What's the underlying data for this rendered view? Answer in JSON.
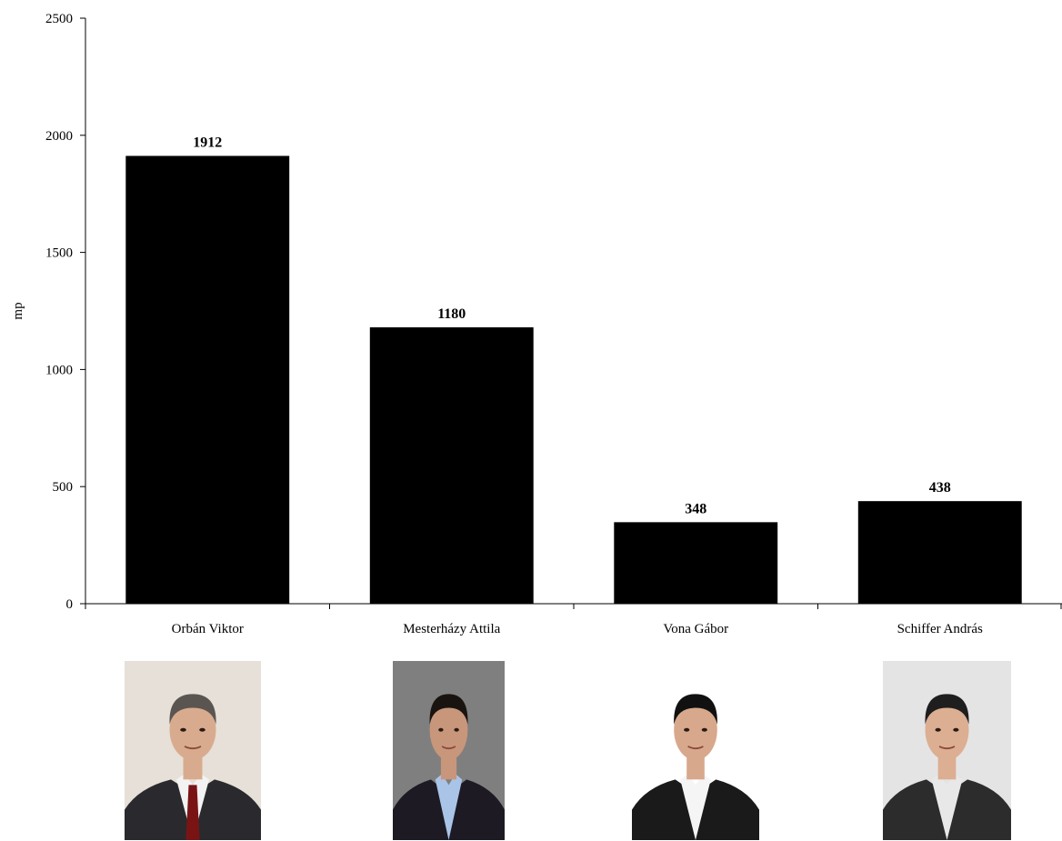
{
  "chart_data": {
    "type": "bar",
    "title": "",
    "xlabel": "",
    "ylabel": "mp",
    "ylim": [
      0,
      2500
    ],
    "yticks": [
      0,
      500,
      1000,
      1500,
      2000,
      2500
    ],
    "categories": [
      "Orbán Viktor",
      "Mesterházy Attila",
      "Vona Gábor",
      "Schiffer András"
    ],
    "values": [
      1912,
      1180,
      348,
      438
    ],
    "data_labels": [
      "1912",
      "1180",
      "348",
      "438"
    ],
    "bar_color": "#000000",
    "grid": false,
    "legend": "none"
  },
  "portraits": [
    {
      "name": "portrait-orban-viktor",
      "background": "#e6e0d8",
      "suit": "#2a2a2e",
      "shirt": "#f3f3f3",
      "tie": "#7a1414",
      "hair": "#5a5550",
      "skin": "#d9ab8e"
    },
    {
      "name": "portrait-mesterhazy-attila",
      "background": "#7f7f7f",
      "suit": "#1d1a24",
      "shirt": "#a9c4e6",
      "tie": "",
      "hair": "#1a1410",
      "skin": "#c8967a"
    },
    {
      "name": "portrait-vona-gabor",
      "background": "#ffffff",
      "suit": "#1a1a1a",
      "shirt": "#f5f5f5",
      "tie": "",
      "hair": "#111111",
      "skin": "#d8a88c"
    },
    {
      "name": "portrait-schiffer-andras",
      "background": "#e4e4e4",
      "suit": "#2c2c2c",
      "shirt": "#e8e8e8",
      "tie": "",
      "hair": "#1e1e1e",
      "skin": "#dcae92"
    }
  ]
}
